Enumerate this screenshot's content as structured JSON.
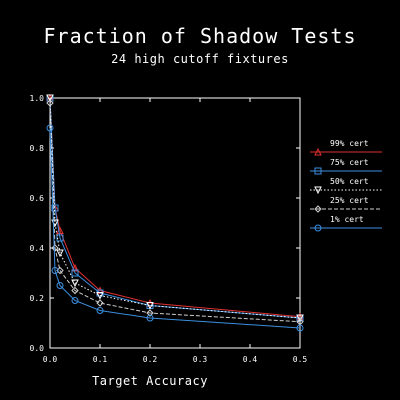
{
  "chart_data": {
    "type": "line",
    "title": "Fraction of Shadow Tests",
    "subtitle": "24 high cutoff fixtures",
    "xlabel": "Target Accuracy",
    "ylabel": "",
    "xlim": [
      0.0,
      0.5
    ],
    "ylim": [
      0.0,
      1.0
    ],
    "xticks": [
      "0.0",
      "0.1",
      "0.2",
      "0.3",
      "0.4",
      "0.5"
    ],
    "yticks": [
      "0.0",
      "0.2",
      "0.4",
      "0.6",
      "0.8",
      "1.0"
    ],
    "grid": false,
    "legend_position": "right",
    "x": [
      0.0,
      0.01,
      0.02,
      0.05,
      0.1,
      0.2,
      0.5
    ],
    "series": [
      {
        "name": "99% cert",
        "color": "#e03030",
        "dash": "solid",
        "marker": "triangle-up",
        "values": [
          1.0,
          0.56,
          0.47,
          0.32,
          0.23,
          0.18,
          0.125
        ]
      },
      {
        "name": "75% cert",
        "color": "#3b8fe0",
        "dash": "solid",
        "marker": "square",
        "values": [
          1.0,
          0.56,
          0.44,
          0.3,
          0.22,
          0.17,
          0.12
        ]
      },
      {
        "name": "50% cert",
        "color": "#ffffff",
        "dash": "dotted",
        "marker": "triangle-down",
        "values": [
          1.0,
          0.5,
          0.38,
          0.26,
          0.21,
          0.17,
          0.12
        ]
      },
      {
        "name": "25% cert",
        "color": "#cfcfcf",
        "dash": "dashed",
        "marker": "diamond",
        "values": [
          0.98,
          0.4,
          0.31,
          0.23,
          0.18,
          0.14,
          0.105
        ]
      },
      {
        "name": "1% cert",
        "color": "#3b8fe0",
        "dash": "solid",
        "marker": "circle",
        "values": [
          0.88,
          0.31,
          0.25,
          0.19,
          0.15,
          0.12,
          0.08
        ]
      }
    ]
  }
}
